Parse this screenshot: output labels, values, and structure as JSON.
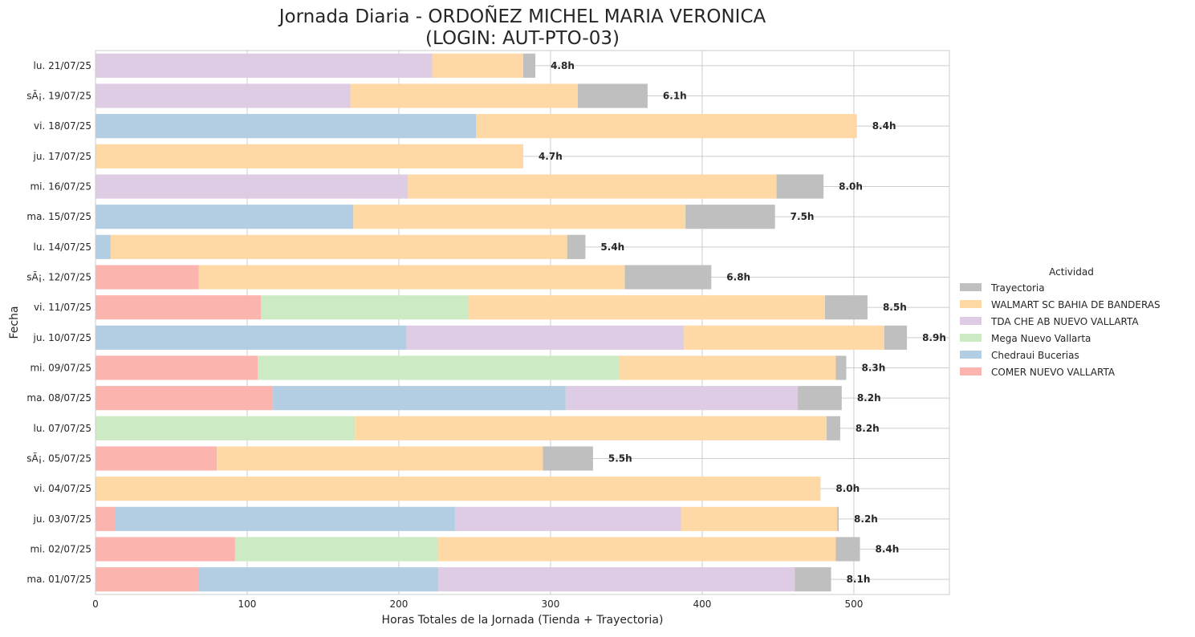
{
  "chart_data": {
    "type": "bar",
    "orientation": "horizontal",
    "stacked": true,
    "title": "Jornada Diaria - ORDOÑEZ MICHEL MARIA VERONICA",
    "subtitle": "(LOGIN: AUT-PTO-03)",
    "xlabel": "Horas Totales de la Jornada (Tienda + Trayectoria)",
    "ylabel": "Fecha",
    "xlim": [
      0,
      563
    ],
    "xticks": [
      0,
      100,
      200,
      300,
      400,
      500
    ],
    "grid": true,
    "legend": {
      "title": "Actividad",
      "placement": "right",
      "entries": [
        "Trayectoria",
        "WALMART SC BAHIA DE BANDERAS",
        "TDA CHE AB NUEVO VALLARTA",
        "Mega Nuevo Vallarta",
        "Chedraui Bucerias",
        "COMER NUEVO VALLARTA"
      ]
    },
    "colors": {
      "Trayectoria": "#bfbfbf",
      "WALMART SC BAHIA DE BANDERAS": "#fed9a6",
      "TDA CHE AB NUEVO VALLARTA": "#decbe4",
      "Mega Nuevo Vallarta": "#ccebc5",
      "Chedraui Bucerias": "#b3cde3",
      "COMER NUEVO VALLARTA": "#fbb4ae"
    },
    "categories": [
      "lu. 21/07/25",
      "sÃ¡. 19/07/25",
      "vi. 18/07/25",
      "ju. 17/07/25",
      "mi. 16/07/25",
      "ma. 15/07/25",
      "lu. 14/07/25",
      "sÃ¡. 12/07/25",
      "vi. 11/07/25",
      "ju. 10/07/25",
      "mi. 09/07/25",
      "ma. 08/07/25",
      "lu. 07/07/25",
      "sÃ¡. 05/07/25",
      "vi. 04/07/25",
      "ju. 03/07/25",
      "mi. 02/07/25",
      "ma. 01/07/25"
    ],
    "totals_labels": [
      "4.8h",
      "6.1h",
      "8.4h",
      "4.7h",
      "8.0h",
      "7.5h",
      "5.4h",
      "6.8h",
      "8.5h",
      "8.9h",
      "8.3h",
      "8.2h",
      "8.2h",
      "5.5h",
      "8.0h",
      "8.2h",
      "8.4h",
      "8.1h"
    ],
    "rows": [
      [
        {
          "s": "TDA CHE AB NUEVO VALLARTA",
          "v": 222
        },
        {
          "s": "WALMART SC BAHIA DE BANDERAS",
          "v": 60
        },
        {
          "s": "Trayectoria",
          "v": 8
        }
      ],
      [
        {
          "s": "TDA CHE AB NUEVO VALLARTA",
          "v": 168
        },
        {
          "s": "WALMART SC BAHIA DE BANDERAS",
          "v": 150
        },
        {
          "s": "Trayectoria",
          "v": 46
        }
      ],
      [
        {
          "s": "Chedraui Bucerias",
          "v": 251
        },
        {
          "s": "WALMART SC BAHIA DE BANDERAS",
          "v": 251
        }
      ],
      [
        {
          "s": "WALMART SC BAHIA DE BANDERAS",
          "v": 282
        }
      ],
      [
        {
          "s": "TDA CHE AB NUEVO VALLARTA",
          "v": 206
        },
        {
          "s": "WALMART SC BAHIA DE BANDERAS",
          "v": 243
        },
        {
          "s": "Trayectoria",
          "v": 31
        }
      ],
      [
        {
          "s": "Chedraui Bucerias",
          "v": 170
        },
        {
          "s": "WALMART SC BAHIA DE BANDERAS",
          "v": 219
        },
        {
          "s": "Trayectoria",
          "v": 59
        }
      ],
      [
        {
          "s": "Chedraui Bucerias",
          "v": 10
        },
        {
          "s": "WALMART SC BAHIA DE BANDERAS",
          "v": 301
        },
        {
          "s": "Trayectoria",
          "v": 12
        }
      ],
      [
        {
          "s": "COMER NUEVO VALLARTA",
          "v": 68
        },
        {
          "s": "WALMART SC BAHIA DE BANDERAS",
          "v": 281
        },
        {
          "s": "Trayectoria",
          "v": 57
        }
      ],
      [
        {
          "s": "COMER NUEVO VALLARTA",
          "v": 109
        },
        {
          "s": "Mega Nuevo Vallarta",
          "v": 137
        },
        {
          "s": "WALMART SC BAHIA DE BANDERAS",
          "v": 235
        },
        {
          "s": "Trayectoria",
          "v": 28
        }
      ],
      [
        {
          "s": "Chedraui Bucerias",
          "v": 205
        },
        {
          "s": "TDA CHE AB NUEVO VALLARTA",
          "v": 183
        },
        {
          "s": "WALMART SC BAHIA DE BANDERAS",
          "v": 132
        },
        {
          "s": "Trayectoria",
          "v": 15
        }
      ],
      [
        {
          "s": "COMER NUEVO VALLARTA",
          "v": 107
        },
        {
          "s": "Mega Nuevo Vallarta",
          "v": 238
        },
        {
          "s": "WALMART SC BAHIA DE BANDERAS",
          "v": 143
        },
        {
          "s": "Trayectoria",
          "v": 7
        }
      ],
      [
        {
          "s": "COMER NUEVO VALLARTA",
          "v": 117
        },
        {
          "s": "Chedraui Bucerias",
          "v": 193
        },
        {
          "s": "TDA CHE AB NUEVO VALLARTA",
          "v": 153
        },
        {
          "s": "Trayectoria",
          "v": 29
        }
      ],
      [
        {
          "s": "Mega Nuevo Vallarta",
          "v": 171
        },
        {
          "s": "WALMART SC BAHIA DE BANDERAS",
          "v": 311
        },
        {
          "s": "Trayectoria",
          "v": 9
        }
      ],
      [
        {
          "s": "COMER NUEVO VALLARTA",
          "v": 80
        },
        {
          "s": "WALMART SC BAHIA DE BANDERAS",
          "v": 215
        },
        {
          "s": "Trayectoria",
          "v": 33
        }
      ],
      [
        {
          "s": "WALMART SC BAHIA DE BANDERAS",
          "v": 478
        }
      ],
      [
        {
          "s": "COMER NUEVO VALLARTA",
          "v": 13
        },
        {
          "s": "Chedraui Bucerias",
          "v": 224
        },
        {
          "s": "TDA CHE AB NUEVO VALLARTA",
          "v": 149
        },
        {
          "s": "WALMART SC BAHIA DE BANDERAS",
          "v": 103
        },
        {
          "s": "Trayectoria",
          "v": 1
        }
      ],
      [
        {
          "s": "COMER NUEVO VALLARTA",
          "v": 92
        },
        {
          "s": "Mega Nuevo Vallarta",
          "v": 134
        },
        {
          "s": "WALMART SC BAHIA DE BANDERAS",
          "v": 262
        },
        {
          "s": "Trayectoria",
          "v": 16
        }
      ],
      [
        {
          "s": "COMER NUEVO VALLARTA",
          "v": 68
        },
        {
          "s": "Chedraui Bucerias",
          "v": 158
        },
        {
          "s": "TDA CHE AB NUEVO VALLARTA",
          "v": 235
        },
        {
          "s": "Trayectoria",
          "v": 24
        }
      ]
    ]
  }
}
